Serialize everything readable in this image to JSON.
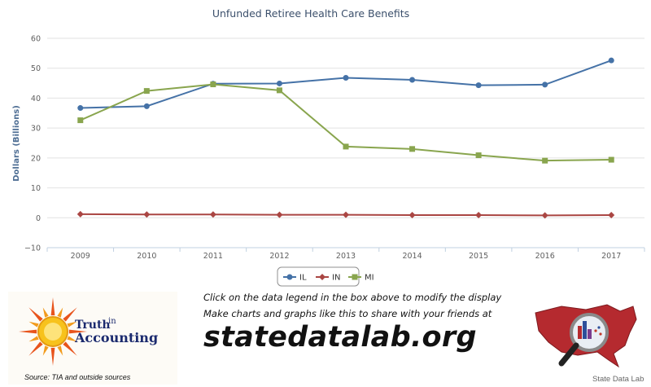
{
  "chart_data": {
    "type": "line",
    "title": "Unfunded Retiree Health Care Benefits",
    "ylabel": "Dollars (Billions)",
    "xlabel": "",
    "x": [
      "2009",
      "2010",
      "2011",
      "2012",
      "2013",
      "2014",
      "2015",
      "2016",
      "2017"
    ],
    "ylim": [
      -10,
      60
    ],
    "yticks": [
      -10,
      0,
      10,
      20,
      30,
      40,
      50,
      60
    ],
    "grid": true,
    "legend_position": "bottom-center",
    "series": [
      {
        "name": "IL",
        "color": "#4572a7",
        "marker": "circle",
        "values": [
          36.7,
          37.3,
          44.8,
          44.9,
          46.8,
          46.1,
          44.3,
          44.5,
          52.6
        ]
      },
      {
        "name": "IN",
        "color": "#aa4643",
        "marker": "diamond",
        "values": [
          1.2,
          1.1,
          1.1,
          1.0,
          1.0,
          0.9,
          0.9,
          0.8,
          0.9
        ]
      },
      {
        "name": "MI",
        "color": "#89a54e",
        "marker": "square",
        "values": [
          32.6,
          42.4,
          44.6,
          42.6,
          23.8,
          23.0,
          20.9,
          19.1,
          19.4
        ]
      }
    ]
  },
  "footer": {
    "instruction": "Click on the data legend in the box above to modify the display",
    "share": "Make charts and graphs like this to share with your friends at",
    "site": "statedatalab.org",
    "logo_text_1": "Truth",
    "logo_text_2": "in",
    "logo_text_3": "Accounting",
    "source": "Source: TIA and outside sources",
    "right_caption": "State Data Lab"
  },
  "icons": {
    "tia_logo": "sun-logo",
    "sdl_logo": "us-map-magnifier-icon"
  }
}
